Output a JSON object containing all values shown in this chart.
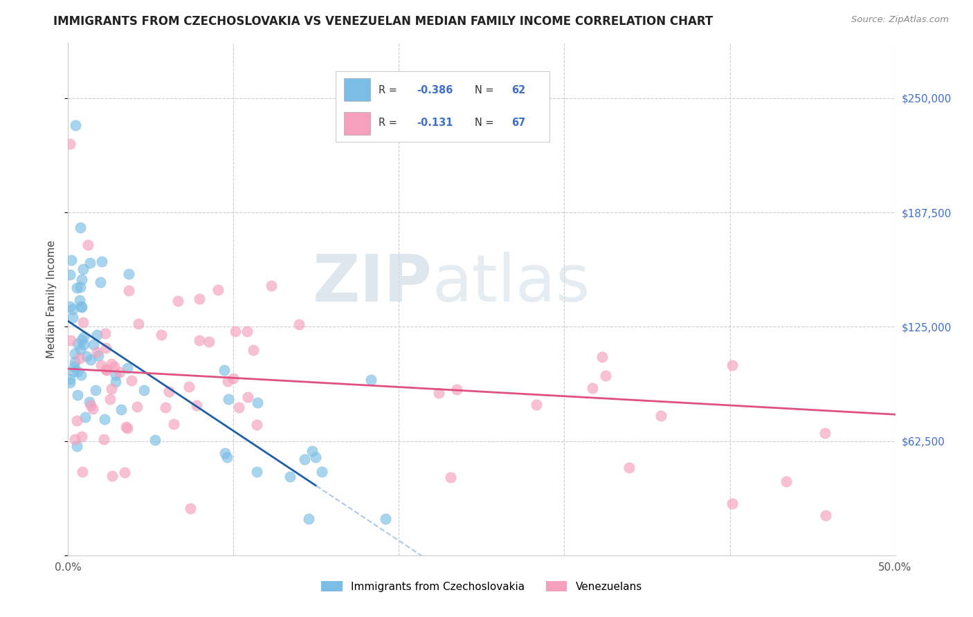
{
  "title": "IMMIGRANTS FROM CZECHOSLOVAKIA VS VENEZUELAN MEDIAN FAMILY INCOME CORRELATION CHART",
  "source": "Source: ZipAtlas.com",
  "ylabel": "Median Family Income",
  "xlim": [
    0.0,
    0.5
  ],
  "ylim": [
    0,
    280000
  ],
  "yticks": [
    0,
    62500,
    125000,
    187500,
    250000
  ],
  "right_ytick_labels": [
    "",
    "$62,500",
    "$125,000",
    "$187,500",
    "$250,000"
  ],
  "xticks": [
    0.0,
    0.1,
    0.2,
    0.3,
    0.4,
    0.5
  ],
  "xtick_labels": [
    "0.0%",
    "",
    "",
    "",
    "",
    "50.0%"
  ],
  "watermark_zip": "ZIP",
  "watermark_atlas": "atlas",
  "series1_color": "#7bbde4",
  "series2_color": "#f5a0bc",
  "trendline1_color": "#1a5fa8",
  "trendline2_color": "#e05080",
  "trendline_ext_color": "#b0c8e8",
  "background_color": "#ffffff",
  "grid_color": "#cccccc",
  "blue_label_color": "#4070c8",
  "series1_label": "Immigrants from Czechoslovakia",
  "series2_label": "Venezuelans",
  "title_color": "#222222",
  "source_color": "#888888",
  "ylabel_color": "#444444"
}
